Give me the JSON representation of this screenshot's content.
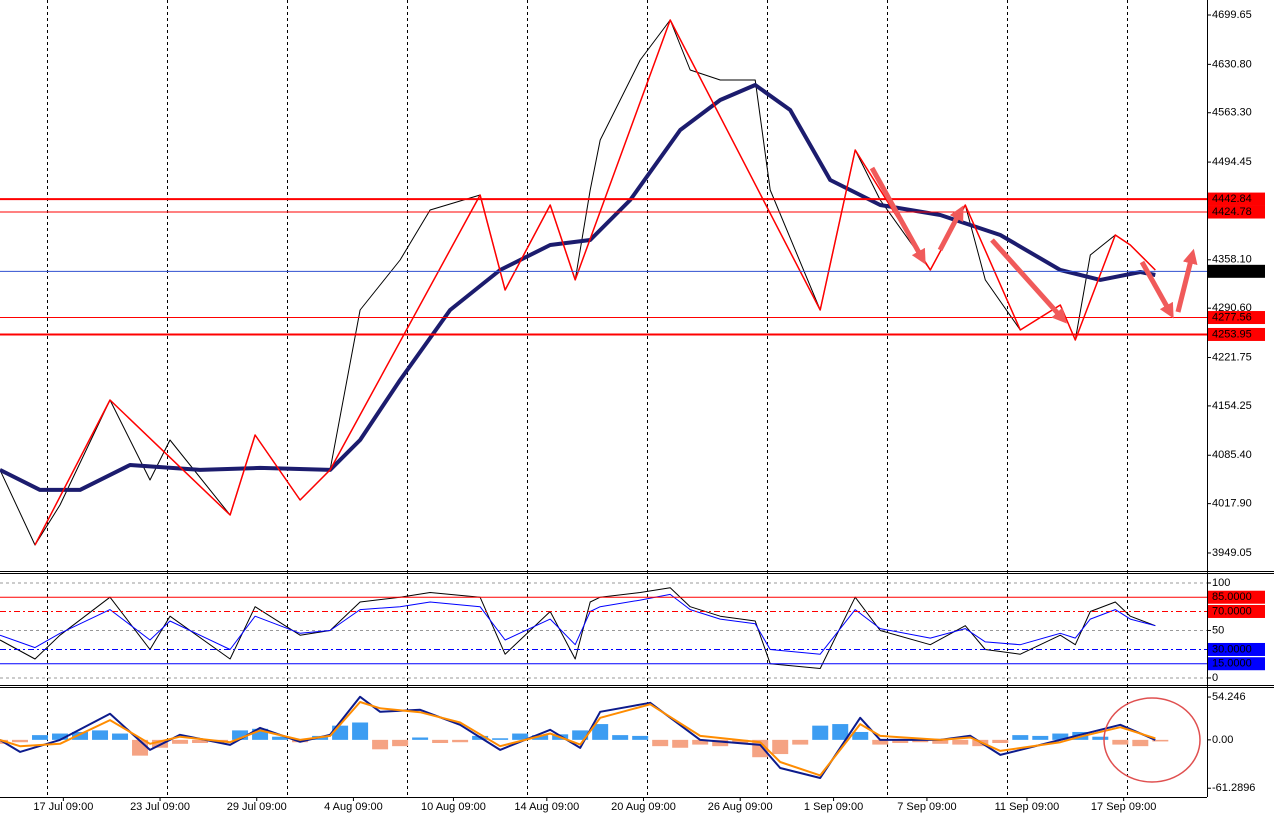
{
  "chart_data": [
    {
      "type": "line",
      "ylim": [
        3925.3,
        4720.6
      ],
      "yticks": [
        4699.65,
        {
          "value": 4630.8,
          "label": "4630.80"
        },
        {
          "value": 4563.3,
          "label": "4563.30"
        },
        4494.45,
        {
          "value": 4358.1,
          "label": "4358.10"
        },
        {
          "value": 4290.6,
          "label": "4290.60"
        },
        4221.75,
        4154.25,
        {
          "value": 4085.4,
          "label": "4085.40"
        },
        {
          "value": 4017.9,
          "label": "4017.90"
        },
        3949.05
      ],
      "levels": [
        {
          "value": 4442.84,
          "color": "#ff0000",
          "width": 2
        },
        {
          "value": 4424.78,
          "color": "#ff0000",
          "width": 1
        },
        {
          "value": 4342.04,
          "color": "#3050d0",
          "width": 1,
          "box": "#000000"
        },
        {
          "value": 4277.56,
          "color": "#ff0000",
          "width": 1
        },
        {
          "value": 4253.95,
          "color": "#ff0000",
          "width": 2
        }
      ],
      "series": [
        {
          "color": "#000000",
          "width": 1,
          "x": [
            0,
            10.5,
            18,
            33,
            45,
            51,
            69,
            76.5,
            90,
            99,
            108,
            120,
            129,
            144,
            151.5,
            165,
            172.5,
            177,
            180,
            192,
            201,
            207,
            216,
            226.5,
            231,
            246,
            256.5,
            264,
            279,
            289.5,
            295.5,
            306,
            318,
            322.5,
            327,
            334.5,
            339,
            346.5
          ],
          "values": [
            4064.9,
            3960.2,
            4016.0,
            4162.5,
            4050.9,
            4106.7,
            4002.1,
            4113.7,
            4023.0,
            4064.9,
            4288.1,
            4357.8,
            4427.6,
            4448.5,
            4316.0,
            4434.6,
            4330.0,
            4455.5,
            4525.3,
            4636.9,
            4692.7,
            4622.9,
            4609.0,
            4609.0,
            4455.5,
            4288.1,
            4511.3,
            4441.6,
            4343.9,
            4434.6,
            4330.0,
            4260.2,
            4295.1,
            4246.2,
            4364.8,
            4392.7,
            4378.8,
            4343.9
          ]
        },
        {
          "color": "#1c1c6e",
          "width": 4,
          "x": [
            0,
            12,
            24,
            39,
            60,
            78,
            99,
            108,
            120,
            135,
            150,
            165,
            177,
            189,
            204,
            216,
            226.5,
            237,
            249,
            264,
            282,
            300,
            318,
            330,
            342,
            346.5
          ],
          "values": [
            4064.9,
            4037.0,
            4037.0,
            4071.8,
            4064.9,
            4067.7,
            4064.9,
            4106.7,
            4190.4,
            4288.1,
            4343.9,
            4378.8,
            4385.8,
            4441.6,
            4539.2,
            4581.1,
            4602.0,
            4567.1,
            4469.5,
            4434.6,
            4420.6,
            4392.7,
            4343.9,
            4330.0,
            4341.1,
            4336.9
          ]
        },
        {
          "color": "#ff0000",
          "width": 1.5,
          "x": [
            10.5,
            33,
            69,
            76.5,
            90,
            99,
            144,
            151.5,
            165,
            172.5,
            201,
            246,
            256.5,
            279,
            289.5,
            306,
            318,
            322.5,
            334.5,
            339,
            346.5
          ],
          "values": [
            3960.2,
            4162.5,
            4002.1,
            4113.7,
            4023.0,
            4064.9,
            4448.5,
            4316.0,
            4434.6,
            4330.0,
            4692.7,
            4288.1,
            4511.3,
            4343.9,
            4434.6,
            4260.2,
            4295.1,
            4246.2,
            4392.7,
            4378.8,
            4343.9
          ]
        }
      ]
    },
    {
      "type": "line",
      "ylim": [
        -7.4,
        110.5
      ],
      "yticks": [
        100,
        50,
        0
      ],
      "grid": true,
      "levels": [
        {
          "value": 85,
          "label": "85.0000",
          "color": "#ff0000",
          "width": 1,
          "box": "#ff0000"
        },
        {
          "value": 70,
          "label": "70.0000",
          "color": "#ff0000",
          "width": 1,
          "box": "#ff0000",
          "dash": true
        },
        {
          "value": 30,
          "label": "30.0000",
          "color": "#0000ff",
          "width": 1,
          "box": "#0000ff",
          "dash": true
        },
        {
          "value": 15,
          "label": "15.0000",
          "color": "#0000ff",
          "width": 1,
          "box": "#0000ff"
        }
      ],
      "series": [
        {
          "color": "#000000",
          "width": 1,
          "x": [
            0,
            10.5,
            18,
            33,
            45,
            51,
            69,
            76.5,
            90,
            99,
            108,
            120,
            129,
            144,
            151.5,
            165,
            172.5,
            177,
            180,
            192,
            201,
            207,
            216,
            226.5,
            231,
            246,
            256.5,
            264,
            279,
            289.5,
            295.5,
            306,
            318,
            322.5,
            327,
            334.5,
            339,
            346.5
          ],
          "values": [
            40,
            20,
            45,
            85,
            30,
            65,
            20,
            75,
            45,
            50,
            80,
            85,
            90,
            85,
            25,
            70,
            20,
            80,
            85,
            90,
            95,
            75,
            65,
            60,
            15,
            10,
            85,
            50,
            35,
            55,
            30,
            25,
            45,
            35,
            70,
            80,
            65,
            55
          ]
        },
        {
          "color": "#0000ff",
          "width": 1,
          "x": [
            0,
            10.5,
            18,
            33,
            45,
            51,
            69,
            76.5,
            90,
            99,
            108,
            120,
            129,
            144,
            151.5,
            165,
            172.5,
            177,
            180,
            192,
            201,
            207,
            216,
            226.5,
            231,
            246,
            256.5,
            264,
            279,
            289.5,
            295.5,
            306,
            318,
            322.5,
            327,
            334.5,
            339,
            346.5
          ],
          "values": [
            45,
            32,
            47,
            72,
            40,
            60,
            30,
            65,
            47,
            50,
            72,
            75,
            80,
            75,
            40,
            62,
            35,
            70,
            75,
            82,
            88,
            72,
            62,
            57,
            30,
            25,
            72,
            52,
            42,
            52,
            38,
            35,
            47,
            42,
            62,
            72,
            62,
            55
          ]
        }
      ]
    },
    {
      "type": "macd",
      "ylim": [
        -72.4,
        65.7
      ],
      "yticks": [
        54.246,
        {
          "value": 0,
          "label": "0.00"
        },
        -61.2896
      ],
      "xlim": [
        0,
        362
      ],
      "xticks": [
        {
          "value": 19,
          "label": "17 Jul 09:00"
        },
        {
          "value": 48,
          "label": "23 Jul 09:00"
        },
        {
          "value": 77,
          "label": "29 Jul 09:00"
        },
        {
          "value": 106,
          "label": "4 Aug 09:00"
        },
        {
          "value": 136,
          "label": "10 Aug 09:00"
        },
        {
          "value": 164,
          "label": "14 Aug 09:00"
        },
        {
          "value": 193,
          "label": "20 Aug 09:00"
        },
        {
          "value": 222,
          "label": "26 Aug 09:00"
        },
        {
          "value": 250,
          "label": "1 Sep 09:00"
        },
        {
          "value": 278,
          "label": "7 Sep 09:00"
        },
        {
          "value": 308,
          "label": "11 Sep 09:00"
        },
        {
          "value": 337,
          "label": "17 Sep 09:00"
        }
      ],
      "histogram": {
        "color": "#3d9df2",
        "negative_color": "#f5a383",
        "x": [
          0,
          6,
          12,
          18,
          24,
          30,
          36,
          42,
          48,
          54,
          60,
          66,
          72,
          78,
          84,
          90,
          96,
          102,
          108,
          114,
          120,
          126,
          132,
          138,
          144,
          150,
          156,
          162,
          168,
          174,
          180,
          186,
          192,
          198,
          204,
          210,
          216,
          222,
          228,
          234,
          240,
          246,
          252,
          258,
          264,
          270,
          276,
          282,
          288,
          294,
          300,
          306,
          312,
          318,
          324,
          330,
          336,
          342,
          348
        ],
        "values": [
          -5,
          -3,
          6,
          8,
          10,
          12,
          8,
          -20,
          -10,
          -5,
          -4,
          -3,
          12,
          14,
          4,
          -3,
          5,
          18,
          22,
          -12,
          -8,
          3,
          -4,
          -3,
          5,
          2,
          8,
          6,
          7,
          12,
          20,
          6,
          5,
          -8,
          -10,
          -6,
          -8,
          -4,
          -22,
          -18,
          -6,
          18,
          20,
          10,
          -6,
          -4,
          -3,
          -5,
          -6,
          -8,
          -4,
          6,
          5,
          8,
          10,
          4,
          -6,
          -8,
          -2
        ]
      },
      "series": [
        {
          "color": "#0d1b8c",
          "width": 2,
          "x": [
            0,
            6,
            18,
            33,
            45,
            54,
            69,
            78,
            90,
            99,
            108,
            114,
            126,
            138,
            150,
            165,
            174,
            180,
            195,
            210,
            228,
            234,
            246,
            258,
            264,
            282,
            291,
            300,
            318,
            324,
            336,
            346.5
          ],
          "values": [
            0,
            -15.2,
            0,
            33.0,
            -12.7,
            6.4,
            -6.4,
            15.2,
            -2.5,
            6.4,
            54.6,
            35.6,
            38.1,
            19.1,
            -12.7,
            12.7,
            -10.2,
            35.6,
            47.0,
            0,
            -6.4,
            -35.6,
            -48.3,
            27.9,
            0,
            0,
            5.1,
            -19.1,
            0,
            6.4,
            19.1,
            0
          ]
        },
        {
          "color": "#ff8c00",
          "width": 2,
          "x": [
            0,
            6,
            18,
            33,
            45,
            54,
            69,
            78,
            90,
            99,
            108,
            114,
            126,
            138,
            150,
            165,
            174,
            180,
            195,
            210,
            228,
            234,
            246,
            258,
            264,
            282,
            291,
            300,
            318,
            324,
            336,
            346.5
          ],
          "values": [
            0,
            -8,
            -5,
            25,
            -5,
            4,
            -3,
            12,
            0,
            5,
            48,
            40,
            35,
            22,
            -8,
            8,
            -6,
            28,
            45,
            5,
            -3,
            -28,
            -45,
            20,
            5,
            0,
            3,
            -14,
            -3,
            4,
            16,
            2
          ]
        }
      ]
    }
  ]
}
